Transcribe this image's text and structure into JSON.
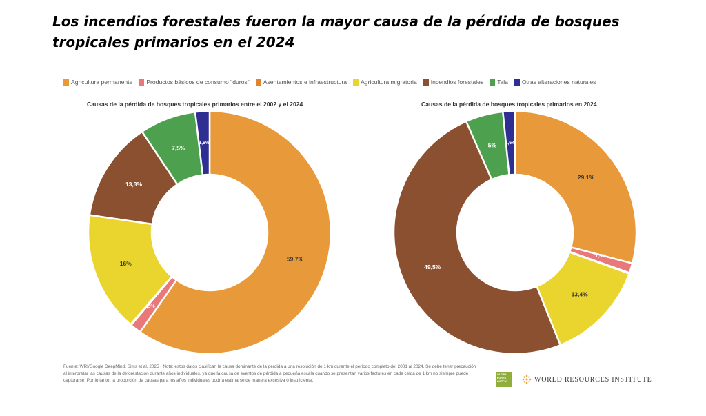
{
  "title": "Los incendios forestales fueron la mayor causa de la pérdida de bosques tropicales primarios en el 2024",
  "legend": [
    {
      "label": "Agricultura permanente",
      "color": "#e89a3a"
    },
    {
      "label": "Productos básicos de consumo \"duros\"",
      "color": "#e8787a"
    },
    {
      "label": "Asentamientos e infraestructura",
      "color": "#e2832d"
    },
    {
      "label": "Agricultura migratoria",
      "color": "#ead42e"
    },
    {
      "label": "Incendios forestales",
      "color": "#8b5030"
    },
    {
      "label": "Tala",
      "color": "#4da14e"
    },
    {
      "label": "Otras alteraciones naturales",
      "color": "#2e2e93"
    }
  ],
  "chart_data": [
    {
      "type": "pie",
      "title": "Causas de la pérdida de bosques tropicales primarios entre el 2002 y el 2024",
      "categories": [
        "Agricultura permanente",
        "Productos básicos de consumo \"duros\"",
        "Asentamientos e infraestructura",
        "Agricultura migratoria",
        "Incendios forestales",
        "Tala",
        "Otras alteraciones naturales"
      ],
      "values": [
        59.7,
        1.5,
        0.1,
        16,
        13.3,
        7.5,
        1.9
      ],
      "labels": [
        "59,7%",
        "1,5%",
        "0,1%",
        "16%",
        "13,3%",
        "7,5%",
        "1,9%"
      ],
      "colors": [
        "#e89a3a",
        "#e8787a",
        "#e2832d",
        "#ead42e",
        "#8b5030",
        "#4da14e",
        "#2e2e93"
      ],
      "donut": true
    },
    {
      "type": "pie",
      "title": "Causas de la pérdida de bosques tropicales primarios en 2024",
      "categories": [
        "Agricultura permanente",
        "Productos básicos de consumo \"duros\"",
        "Asentamientos e infraestructura",
        "Agricultura migratoria",
        "Incendios forestales",
        "Tala",
        "Otras alteraciones naturales"
      ],
      "values": [
        29.1,
        1.3,
        0.1,
        13.4,
        49.5,
        5,
        1.6
      ],
      "labels": [
        "29,1%",
        "1,3%",
        "0,1%",
        "13,4%",
        "49,5%",
        "5%",
        "1,6%"
      ],
      "colors": [
        "#e89a3a",
        "#e8787a",
        "#e2832d",
        "#ead42e",
        "#8b5030",
        "#4da14e",
        "#2e2e93"
      ],
      "donut": true
    }
  ],
  "footnote": "Fuente: WRI/Google DeepMind, Sims et al. 2025 • Nota: estos datos clasifican la causa dominante de la pérdida a una resolución de 1 km durante el período completo del 2001 al 2024. Se debe tener precaución al interpretar las causas de la deforestación durante años individuales, ya que la causa de eventos de pérdida a pequeña escala cuando se presentan varios factores en cada celda de 1 km no siempre puede capturarse. Por lo tanto, la proporción de causas para los años individuales podría estimarse de manera excesiva o insuficiente.",
  "logos": {
    "gfw": "GLOBAL FOREST WATCH",
    "wri": "WORLD RESOURCES INSTITUTE"
  }
}
